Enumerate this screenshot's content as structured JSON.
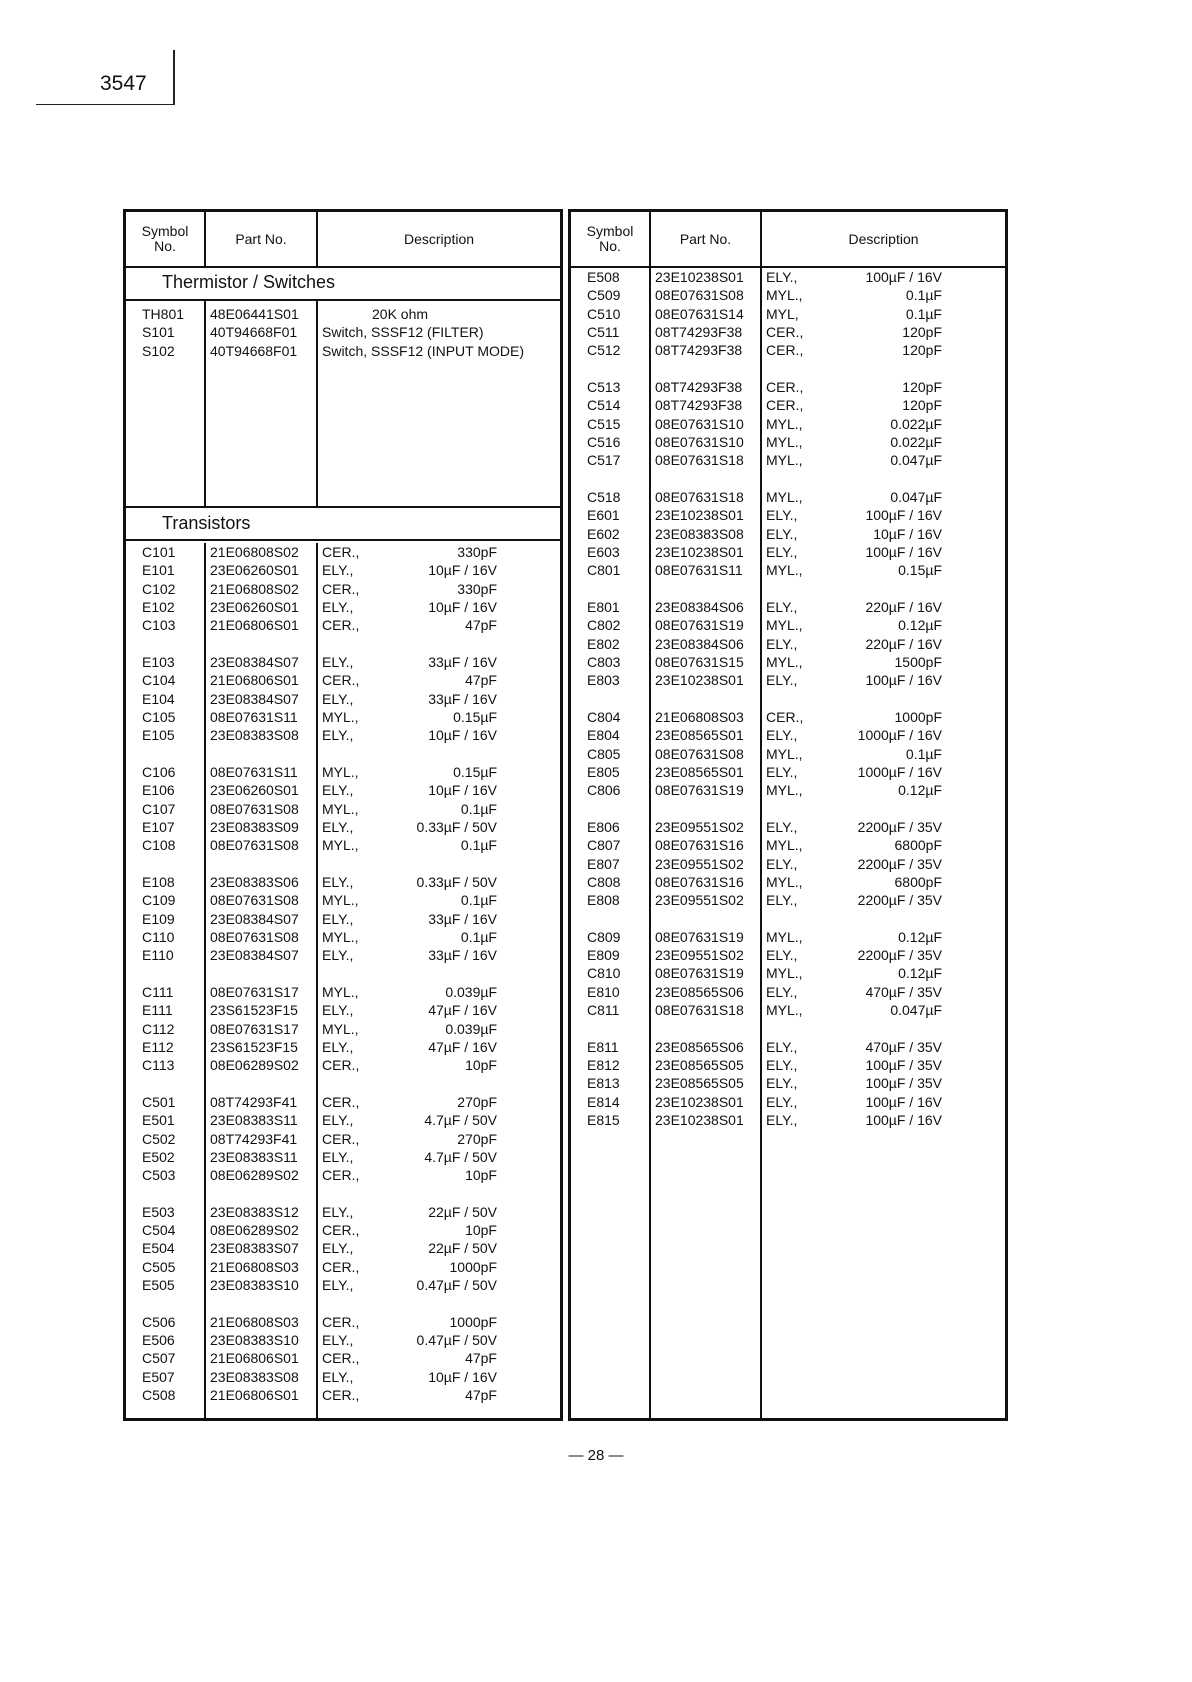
{
  "page_code": "3547",
  "page_number": "— 28 —",
  "headers": {
    "symbol": "Symbol No.",
    "symbol_line1": "Symbol",
    "symbol_line2": "No.",
    "part": "Part No.",
    "description": "Description"
  },
  "left": {
    "sections": [
      {
        "title": "Thermistor / Switches",
        "groups": [
          [
            {
              "sym": "TH801",
              "part": "48E06441S01",
              "type": "",
              "value": "",
              "text": "20K  ohm"
            },
            {
              "sym": "S101",
              "part": "40T94668F01",
              "type": "",
              "value": "",
              "text": "Switch,  SSSF12 (FILTER)"
            },
            {
              "sym": "S102",
              "part": "40T94668F01",
              "type": "",
              "value": "",
              "text": "Switch,  SSSF12 (INPUT MODE)"
            }
          ]
        ]
      },
      {
        "title": "Transistors",
        "groups": [
          [
            {
              "sym": "C101",
              "part": "21E06808S02",
              "type": "CER.,",
              "value": "330pF"
            },
            {
              "sym": "E101",
              "part": "23E06260S01",
              "type": "ELY.,",
              "value": "10µF / 16V"
            },
            {
              "sym": "C102",
              "part": "21E06808S02",
              "type": "CER.,",
              "value": "330pF"
            },
            {
              "sym": "E102",
              "part": "23E06260S01",
              "type": "ELY.,",
              "value": "10µF / 16V"
            },
            {
              "sym": "C103",
              "part": "21E06806S01",
              "type": "CER.,",
              "value": "47pF"
            }
          ],
          [
            {
              "sym": "E103",
              "part": "23E08384S07",
              "type": "ELY.,",
              "value": "33µF / 16V"
            },
            {
              "sym": "C104",
              "part": "21E06806S01",
              "type": "CER.,",
              "value": "47pF"
            },
            {
              "sym": "E104",
              "part": "23E08384S07",
              "type": "ELY.,",
              "value": "33µF / 16V"
            },
            {
              "sym": "C105",
              "part": "08E07631S11",
              "type": "MYL.,",
              "value": "0.15µF"
            },
            {
              "sym": "E105",
              "part": "23E08383S08",
              "type": "ELY.,",
              "value": "10µF / 16V"
            }
          ],
          [
            {
              "sym": "C106",
              "part": "08E07631S11",
              "type": "MYL.,",
              "value": "0.15µF"
            },
            {
              "sym": "E106",
              "part": "23E06260S01",
              "type": "ELY.,",
              "value": "10µF / 16V"
            },
            {
              "sym": "C107",
              "part": "08E07631S08",
              "type": "MYL.,",
              "value": "0.1µF"
            },
            {
              "sym": "E107",
              "part": "23E08383S09",
              "type": "ELY.,",
              "value": "0.33µF / 50V"
            },
            {
              "sym": "C108",
              "part": "08E07631S08",
              "type": "MYL.,",
              "value": "0.1µF"
            }
          ],
          [
            {
              "sym": "E108",
              "part": "23E08383S06",
              "type": "ELY.,",
              "value": "0.33µF / 50V"
            },
            {
              "sym": "C109",
              "part": "08E07631S08",
              "type": "MYL.,",
              "value": "0.1µF"
            },
            {
              "sym": "E109",
              "part": "23E08384S07",
              "type": "ELY.,",
              "value": "33µF / 16V"
            },
            {
              "sym": "C110",
              "part": "08E07631S08",
              "type": "MYL.,",
              "value": "0.1µF"
            },
            {
              "sym": "E110",
              "part": "23E08384S07",
              "type": "ELY.,",
              "value": "33µF / 16V"
            }
          ],
          [
            {
              "sym": "C111",
              "part": "08E07631S17",
              "type": "MYL.,",
              "value": "0.039µF"
            },
            {
              "sym": "E111",
              "part": "23S61523F15",
              "type": "ELY.,",
              "value": "47µF / 16V"
            },
            {
              "sym": "C112",
              "part": "08E07631S17",
              "type": "MYL.,",
              "value": "0.039µF"
            },
            {
              "sym": "E112",
              "part": "23S61523F15",
              "type": "ELY.,",
              "value": "47µF / 16V"
            },
            {
              "sym": "C113",
              "part": "08E06289S02",
              "type": "CER.,",
              "value": "10pF"
            }
          ],
          [
            {
              "sym": "C501",
              "part": "08T74293F41",
              "type": "CER.,",
              "value": "270pF"
            },
            {
              "sym": "E501",
              "part": "23E08383S11",
              "type": "ELY.,",
              "value": "4.7µF / 50V"
            },
            {
              "sym": "C502",
              "part": "08T74293F41",
              "type": "CER.,",
              "value": "270pF"
            },
            {
              "sym": "E502",
              "part": "23E08383S11",
              "type": "ELY.,",
              "value": "4.7µF / 50V"
            },
            {
              "sym": "C503",
              "part": "08E06289S02",
              "type": "CER.,",
              "value": "10pF"
            }
          ],
          [
            {
              "sym": "E503",
              "part": "23E08383S12",
              "type": "ELY.,",
              "value": "22µF / 50V"
            },
            {
              "sym": "C504",
              "part": "08E06289S02",
              "type": "CER.,",
              "value": "10pF"
            },
            {
              "sym": "E504",
              "part": "23E08383S07",
              "type": "ELY.,",
              "value": "22µF / 50V"
            },
            {
              "sym": "C505",
              "part": "21E06808S03",
              "type": "CER.,",
              "value": "1000pF"
            },
            {
              "sym": "E505",
              "part": "23E08383S10",
              "type": "ELY.,",
              "value": "0.47µF / 50V"
            }
          ],
          [
            {
              "sym": "C506",
              "part": "21E06808S03",
              "type": "CER.,",
              "value": "1000pF"
            },
            {
              "sym": "E506",
              "part": "23E08383S10",
              "type": "ELY.,",
              "value": "0.47µF / 50V"
            },
            {
              "sym": "C507",
              "part": "21E06806S01",
              "type": "CER.,",
              "value": "47pF"
            },
            {
              "sym": "E507",
              "part": "23E08383S08",
              "type": "ELY.,",
              "value": "10µF / 16V"
            },
            {
              "sym": "C508",
              "part": "21E06806S01",
              "type": "CER.,",
              "value": "47pF"
            }
          ]
        ]
      }
    ]
  },
  "right": {
    "groups": [
      [
        {
          "sym": "E508",
          "part": "23E10238S01",
          "type": "ELY.,",
          "value": "100µF / 16V"
        },
        {
          "sym": "C509",
          "part": "08E07631S08",
          "type": "MYL.,",
          "value": "0.1µF"
        },
        {
          "sym": "C510",
          "part": "08E07631S14",
          "type": "MYL,",
          "value": "0.1µF"
        },
        {
          "sym": "C511",
          "part": "08T74293F38",
          "type": "CER.,",
          "value": "120pF"
        },
        {
          "sym": "C512",
          "part": "08T74293F38",
          "type": "CER.,",
          "value": "120pF"
        }
      ],
      [
        {
          "sym": "C513",
          "part": "08T74293F38",
          "type": "CER.,",
          "value": "120pF"
        },
        {
          "sym": "C514",
          "part": "08T74293F38",
          "type": "CER.,",
          "value": "120pF"
        },
        {
          "sym": "C515",
          "part": "08E07631S10",
          "type": "MYL.,",
          "value": "0.022µF"
        },
        {
          "sym": "C516",
          "part": "08E07631S10",
          "type": "MYL.,",
          "value": "0.022µF"
        },
        {
          "sym": "C517",
          "part": "08E07631S18",
          "type": "MYL.,",
          "value": "0.047µF"
        }
      ],
      [
        {
          "sym": "C518",
          "part": "08E07631S18",
          "type": "MYL.,",
          "value": "0.047µF"
        },
        {
          "sym": "E601",
          "part": "23E10238S01",
          "type": "ELY.,",
          "value": "100µF / 16V"
        },
        {
          "sym": "E602",
          "part": "23E08383S08",
          "type": "ELY.,",
          "value": "10µF / 16V"
        },
        {
          "sym": "E603",
          "part": "23E10238S01",
          "type": "ELY.,",
          "value": "100µF / 16V"
        },
        {
          "sym": "C801",
          "part": "08E07631S11",
          "type": "MYL.,",
          "value": "0.15µF"
        }
      ],
      [
        {
          "sym": "E801",
          "part": "23E08384S06",
          "type": "ELY.,",
          "value": "220µF / 16V"
        },
        {
          "sym": "C802",
          "part": "08E07631S19",
          "type": "MYL.,",
          "value": "0.12µF"
        },
        {
          "sym": "E802",
          "part": "23E08384S06",
          "type": "ELY.,",
          "value": "220µF / 16V"
        },
        {
          "sym": "C803",
          "part": "08E07631S15",
          "type": "MYL.,",
          "value": "1500pF"
        },
        {
          "sym": "E803",
          "part": "23E10238S01",
          "type": "ELY.,",
          "value": "100µF / 16V"
        }
      ],
      [
        {
          "sym": "C804",
          "part": "21E06808S03",
          "type": "CER.,",
          "value": "1000pF"
        },
        {
          "sym": "E804",
          "part": "23E08565S01",
          "type": "ELY.,",
          "value": "1000µF / 16V"
        },
        {
          "sym": "C805",
          "part": "08E07631S08",
          "type": "MYL.,",
          "value": "0.1µF"
        },
        {
          "sym": "E805",
          "part": "23E08565S01",
          "type": "ELY.,",
          "value": "1000µF / 16V"
        },
        {
          "sym": "C806",
          "part": "08E07631S19",
          "type": "MYL.,",
          "value": "0.12µF"
        }
      ],
      [
        {
          "sym": "E806",
          "part": "23E09551S02",
          "type": "ELY.,",
          "value": "2200µF / 35V"
        },
        {
          "sym": "C807",
          "part": "08E07631S16",
          "type": "MYL.,",
          "value": "6800pF"
        },
        {
          "sym": "E807",
          "part": "23E09551S02",
          "type": "ELY.,",
          "value": "2200µF / 35V"
        },
        {
          "sym": "C808",
          "part": "08E07631S16",
          "type": "MYL.,",
          "value": "6800pF"
        },
        {
          "sym": "E808",
          "part": "23E09551S02",
          "type": "ELY.,",
          "value": "2200µF / 35V"
        }
      ],
      [
        {
          "sym": "C809",
          "part": "08E07631S19",
          "type": "MYL.,",
          "value": "0.12µF"
        },
        {
          "sym": "E809",
          "part": "23E09551S02",
          "type": "ELY.,",
          "value": "2200µF / 35V"
        },
        {
          "sym": "C810",
          "part": "08E07631S19",
          "type": "MYL.,",
          "value": "0.12µF"
        },
        {
          "sym": "E810",
          "part": "23E08565S06",
          "type": "ELY.,",
          "value": "470µF / 35V"
        },
        {
          "sym": "C811",
          "part": "08E07631S18",
          "type": "MYL.,",
          "value": "0.047µF"
        }
      ],
      [
        {
          "sym": "E811",
          "part": "23E08565S06",
          "type": "ELY.,",
          "value": "470µF / 35V"
        },
        {
          "sym": "E812",
          "part": "23E08565S05",
          "type": "ELY.,",
          "value": "100µF / 35V"
        },
        {
          "sym": "E813",
          "part": "23E08565S05",
          "type": "ELY.,",
          "value": "100µF / 35V"
        },
        {
          "sym": "E814",
          "part": "23E10238S01",
          "type": "ELY.,",
          "value": "100µF / 16V"
        },
        {
          "sym": "E815",
          "part": "23E10238S01",
          "type": "ELY.,",
          "value": "100µF / 16V"
        }
      ]
    ]
  }
}
